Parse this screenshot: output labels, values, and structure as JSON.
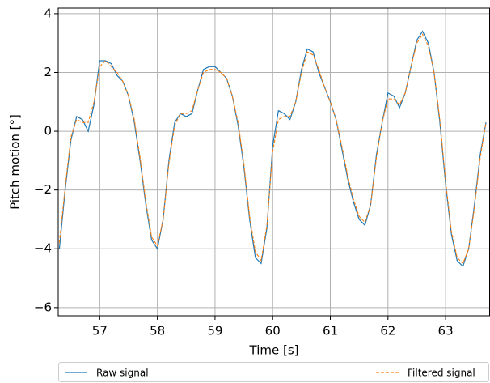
{
  "chart_data": {
    "type": "line",
    "xlabel": "Time [s]",
    "ylabel": "Pitch motion [°]",
    "x": [
      56.3,
      56.4,
      56.5,
      56.6,
      56.7,
      56.8,
      56.9,
      57.0,
      57.1,
      57.2,
      57.3,
      57.4,
      57.5,
      57.6,
      57.7,
      57.8,
      57.9,
      58.0,
      58.1,
      58.2,
      58.3,
      58.4,
      58.5,
      58.6,
      58.7,
      58.8,
      58.9,
      59.0,
      59.1,
      59.2,
      59.3,
      59.4,
      59.5,
      59.6,
      59.7,
      59.8,
      59.9,
      60.0,
      60.1,
      60.2,
      60.3,
      60.4,
      60.5,
      60.6,
      60.7,
      60.8,
      60.9,
      61.0,
      61.1,
      61.2,
      61.3,
      61.4,
      61.5,
      61.6,
      61.7,
      61.8,
      61.9,
      62.0,
      62.1,
      62.2,
      62.3,
      62.4,
      62.5,
      62.6,
      62.7,
      62.8,
      62.9,
      63.0,
      63.1,
      63.2,
      63.3,
      63.4,
      63.5,
      63.6,
      63.7
    ],
    "series": [
      {
        "name": "Raw signal",
        "color": "#1f77b4",
        "dash": false,
        "values": [
          -4.0,
          -2.0,
          -0.3,
          0.5,
          0.4,
          0.0,
          0.9,
          2.4,
          2.4,
          2.3,
          1.9,
          1.7,
          1.2,
          0.3,
          -1.0,
          -2.5,
          -3.7,
          -4.0,
          -3.0,
          -1.0,
          0.3,
          0.6,
          0.5,
          0.6,
          1.4,
          2.1,
          2.2,
          2.2,
          2.0,
          1.8,
          1.2,
          0.2,
          -1.2,
          -3.0,
          -4.3,
          -4.5,
          -3.3,
          -0.5,
          0.7,
          0.6,
          0.4,
          1.0,
          2.1,
          2.8,
          2.7,
          2.0,
          1.5,
          1.0,
          0.4,
          -0.6,
          -1.6,
          -2.4,
          -3.0,
          -3.2,
          -2.5,
          -0.8,
          0.3,
          1.3,
          1.2,
          0.8,
          1.3,
          2.2,
          3.1,
          3.4,
          3.0,
          2.0,
          0.3,
          -1.8,
          -3.5,
          -4.4,
          -4.6,
          -4.0,
          -2.5,
          -0.8,
          0.3
        ]
      },
      {
        "name": "Filtered signal",
        "color": "#ff7f0e",
        "dash": true,
        "values": [
          -3.8,
          -1.9,
          -0.2,
          0.4,
          0.3,
          0.3,
          1.0,
          2.2,
          2.4,
          2.2,
          2.0,
          1.7,
          1.2,
          0.4,
          -0.9,
          -2.4,
          -3.6,
          -3.9,
          -3.0,
          -1.1,
          0.2,
          0.6,
          0.6,
          0.7,
          1.4,
          2.0,
          2.1,
          2.1,
          2.0,
          1.8,
          1.2,
          0.3,
          -1.1,
          -2.9,
          -4.1,
          -4.4,
          -3.2,
          -0.7,
          0.4,
          0.5,
          0.5,
          1.0,
          2.0,
          2.7,
          2.6,
          2.1,
          1.5,
          1.0,
          0.4,
          -0.5,
          -1.5,
          -2.3,
          -2.9,
          -3.1,
          -2.5,
          -0.9,
          0.3,
          1.1,
          1.1,
          0.9,
          1.3,
          2.2,
          3.0,
          3.3,
          2.9,
          2.0,
          0.4,
          -1.7,
          -3.4,
          -4.3,
          -4.5,
          -4.0,
          -2.6,
          -0.9,
          0.3
        ]
      }
    ],
    "xlim": [
      56.28,
      63.77
    ],
    "xticks": [
      57,
      58,
      59,
      60,
      61,
      62,
      63
    ],
    "ylim": [
      -6.28,
      4.19
    ],
    "yticks": [
      {
        "value": -6,
        "label": "−6"
      },
      {
        "value": -4,
        "label": "−4"
      },
      {
        "value": -2,
        "label": "−2"
      },
      0,
      2,
      4
    ],
    "grid": true,
    "legend": "below"
  }
}
